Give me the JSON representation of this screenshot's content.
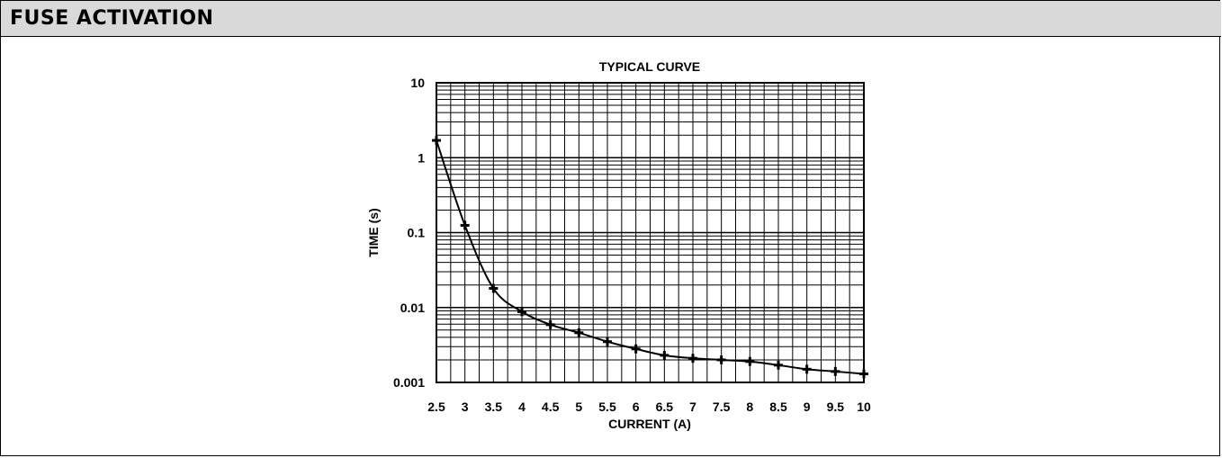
{
  "header": {
    "title": "FUSE ACTIVATION"
  },
  "chart_data": {
    "type": "line",
    "title": "TYPICAL CURVE",
    "xlabel": "CURRENT (A)",
    "ylabel": "TIME (s)",
    "xlim": [
      2.5,
      10
    ],
    "ylim": [
      0.001,
      10
    ],
    "yscale": "log",
    "grid": true,
    "x_ticks": [
      "2.5",
      "3",
      "3.5",
      "4",
      "4.5",
      "5",
      "5.5",
      "6",
      "6.5",
      "7",
      "7.5",
      "8",
      "8.5",
      "9",
      "9.5",
      "10"
    ],
    "y_ticks": [
      "10",
      "1",
      "0.1",
      "0.01",
      "0.001"
    ],
    "marker": "plus",
    "line_color": "#000000",
    "series": [
      {
        "x": [
          2.5,
          3,
          3.5,
          4,
          4.5,
          5,
          5.5,
          6,
          6.5,
          7,
          7.5,
          8,
          8.5,
          9,
          9.5,
          10
        ],
        "values": [
          1.7,
          0.125,
          0.018,
          0.0088,
          0.0059,
          0.0046,
          0.0035,
          0.0028,
          0.0023,
          0.0021,
          0.002,
          0.0019,
          0.0017,
          0.0015,
          0.0014,
          0.0013
        ]
      }
    ]
  }
}
